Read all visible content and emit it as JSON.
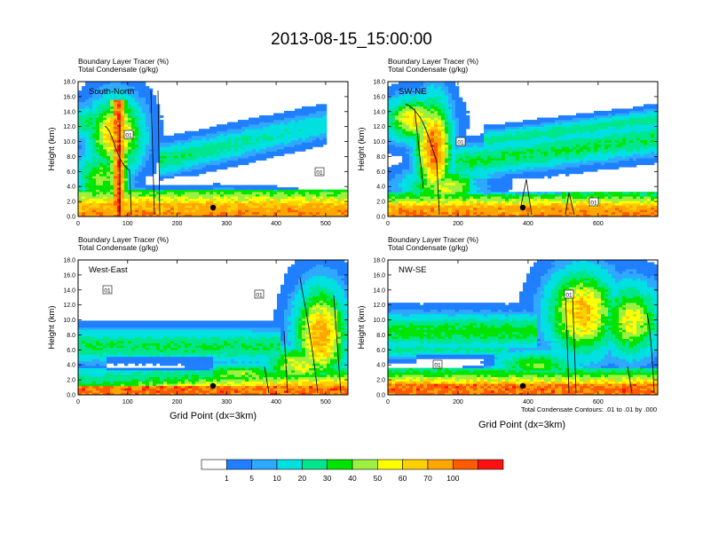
{
  "chart_data": {
    "type": "heatmap",
    "title": "2013-08-15_15:00:00",
    "variable_label": "Boundary Layer Tracer   (%)",
    "contour_label": "Total Condensate   (g/kg)",
    "ylabel": "Height (km)",
    "xlabel": "Grid Point (dx=3km)",
    "ylim": [
      0,
      18
    ],
    "y_ticks": [
      "0.0",
      "2.0",
      "4.0",
      "6.0",
      "8.0",
      "10.0",
      "12.0",
      "14.0",
      "16.0",
      "18.0"
    ],
    "contour_note": "Total Condensate Contours: .01 to .01 by .000",
    "contour_value_label": "01",
    "colorbar": {
      "levels": [
        "1",
        "5",
        "10",
        "20",
        "30",
        "40",
        "50",
        "60",
        "70",
        "100"
      ],
      "colors": [
        "#ffffff",
        "#1f7fff",
        "#2fa8ff",
        "#00e0e0",
        "#00e68c",
        "#00e400",
        "#9cf040",
        "#ffff00",
        "#ffd000",
        "#ffa500",
        "#ff5a00",
        "#ff1010"
      ]
    },
    "panels": [
      {
        "name": "South-North",
        "xlim": [
          0,
          545
        ],
        "x_ticks": [
          0,
          100,
          200,
          300,
          400,
          500
        ]
      },
      {
        "name": "SW-NE",
        "xlim": [
          0,
          770
        ],
        "x_ticks": [
          0,
          200,
          400,
          600
        ]
      },
      {
        "name": "West-East",
        "xlim": [
          0,
          545
        ],
        "x_ticks": [
          0,
          100,
          200,
          300,
          400,
          500
        ]
      },
      {
        "name": "NW-SE",
        "xlim": [
          0,
          770
        ],
        "x_ticks": [
          0,
          200,
          400,
          600
        ]
      }
    ]
  }
}
